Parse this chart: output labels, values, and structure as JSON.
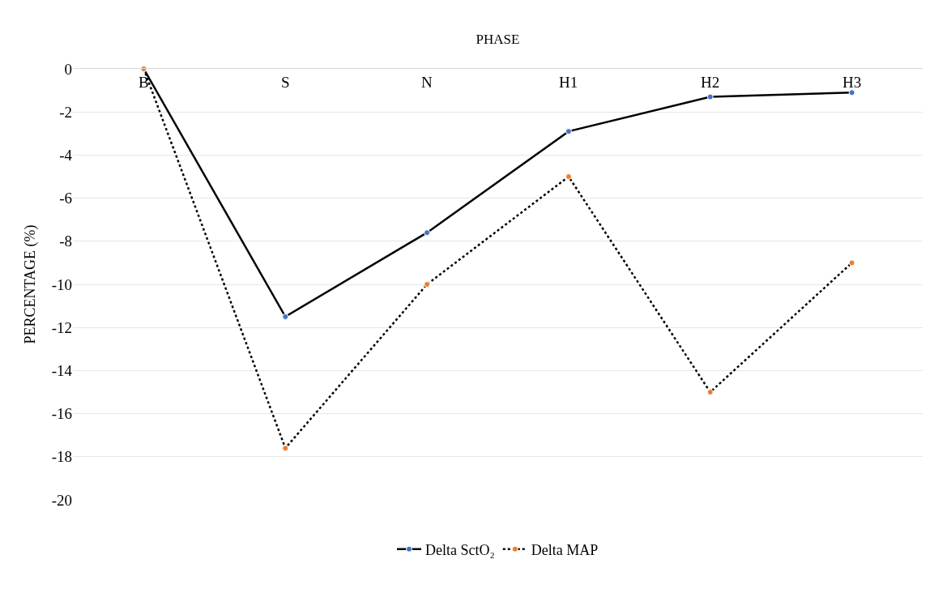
{
  "chart_data": {
    "type": "line",
    "xlabel": "PHASE",
    "ylabel": "PERCENTAGE (%)",
    "categories": [
      "B",
      "S",
      "N",
      "H1",
      "H2",
      "H3"
    ],
    "series": [
      {
        "name": "Delta SctO₂",
        "color": "#000000",
        "colors": [
          "#4472c4",
          "#4472c4",
          "#4472c4",
          "#4472c4",
          "#4472c4",
          "#4472c4"
        ],
        "line_style": "solid",
        "values": [
          0,
          -11.5,
          -7.6,
          -2.9,
          -1.3,
          -1.1
        ]
      },
      {
        "name": "Delta MAP",
        "color": "#000000",
        "colors": [
          "#ed7d31",
          "#ed7d31",
          "#ed7d31",
          "#ed7d31",
          "#ed7d31",
          "#ed7d31"
        ],
        "line_style": "dotted",
        "values": [
          0,
          -17.6,
          -10,
          -5,
          -15,
          -9
        ]
      }
    ],
    "ylim": [
      -20,
      0
    ],
    "yticks": [
      0,
      -2,
      -4,
      -6,
      -8,
      -10,
      -12,
      -14,
      -16,
      -18,
      -20
    ],
    "grid": "y",
    "legend": "bottom",
    "marker": "circle"
  }
}
